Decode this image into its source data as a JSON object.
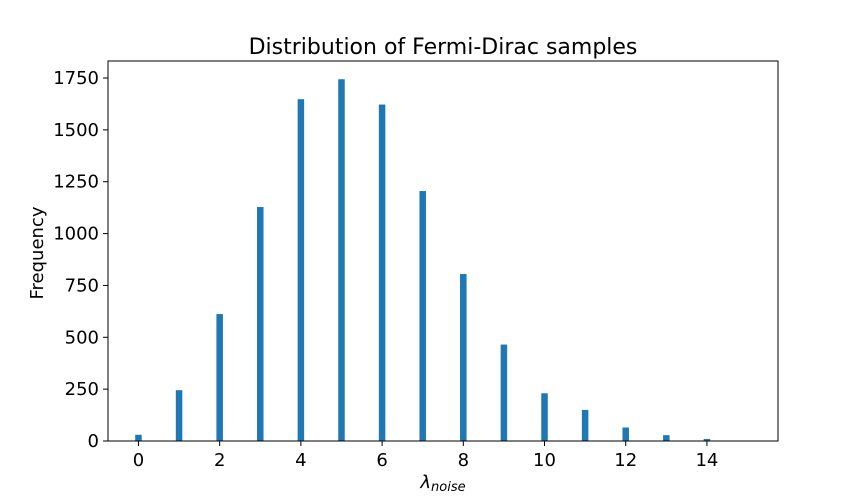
{
  "chart_data": {
    "type": "bar",
    "title": "Distribution of Fermi-Dirac samples",
    "xlabel_main": "λ",
    "xlabel_sub": "noise",
    "ylabel": "Frequency",
    "x": [
      0,
      1,
      2,
      3,
      4,
      5,
      6,
      7,
      8,
      9,
      10,
      11,
      12,
      13,
      14
    ],
    "values": [
      30,
      245,
      612,
      1128,
      1648,
      1744,
      1622,
      1205,
      805,
      465,
      230,
      150,
      65,
      28,
      10
    ],
    "xlim": [
      -0.75,
      15.75
    ],
    "ylim": [
      0,
      1832
    ],
    "xticks": [
      0,
      2,
      4,
      6,
      8,
      10,
      12,
      14
    ],
    "yticks": [
      0,
      250,
      500,
      750,
      1000,
      1250,
      1500,
      1750
    ],
    "grid": false,
    "bar_color": "#1f77b4"
  }
}
